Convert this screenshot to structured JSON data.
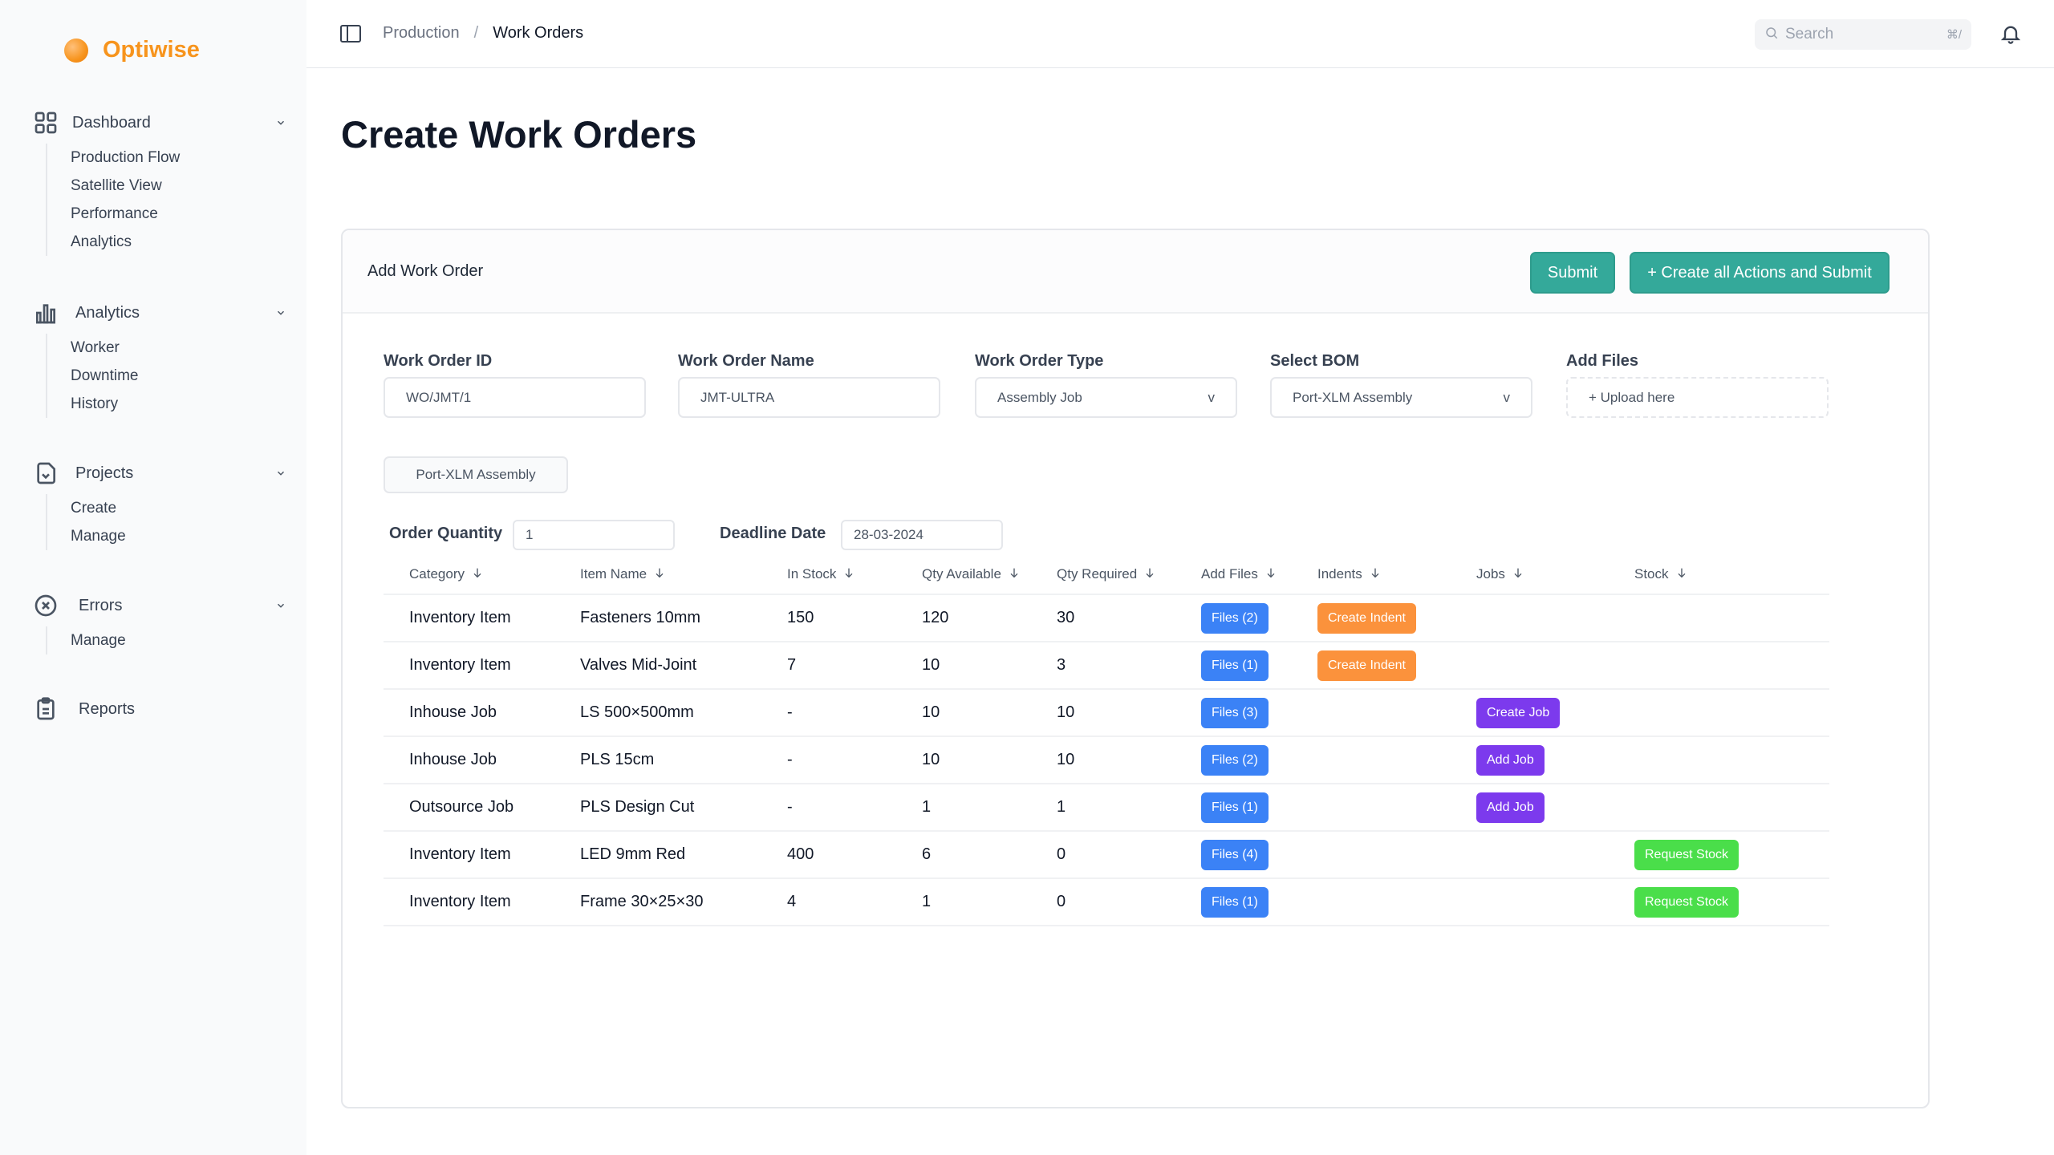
{
  "brand": {
    "name": "Optiwise"
  },
  "sidebar": {
    "groups": [
      {
        "label": "Dashboard",
        "icon": "grid-icon",
        "items": [
          "Production Flow",
          "Satellite View",
          "Performance",
          "Analytics"
        ]
      },
      {
        "label": "Analytics",
        "icon": "bar-chart-icon",
        "items": [
          "Worker",
          "Downtime",
          "History"
        ]
      },
      {
        "label": "Projects",
        "icon": "folder-icon",
        "items": [
          "Create",
          "Manage"
        ]
      },
      {
        "label": "Errors",
        "icon": "x-circle-icon",
        "items": [
          "Manage"
        ]
      },
      {
        "label": "Reports",
        "icon": "clipboard-icon",
        "items": []
      }
    ]
  },
  "topbar": {
    "breadcrumb": [
      "Production",
      "/",
      "Work Orders"
    ],
    "search_placeholder": "Search",
    "search_shortcut": "⌘/"
  },
  "page": {
    "title": "Create Work Orders"
  },
  "card": {
    "title": "Add Work Order",
    "submit_label": "Submit",
    "create_all_label": "+ Create all Actions and Submit"
  },
  "form": {
    "work_order_id": {
      "label": "Work Order ID",
      "value": "WO/JMT/1"
    },
    "work_order_name": {
      "label": "Work Order Name",
      "value": "JMT-ULTRA"
    },
    "work_order_type": {
      "label": "Work Order Type",
      "value": "Assembly Job",
      "arrow": "v"
    },
    "select_bom": {
      "label": "Select BOM",
      "value": "Port-XLM Assembly",
      "arrow": "v"
    },
    "add_files": {
      "label": "Add Files",
      "value": "+ Upload here"
    },
    "bom_chip": "Port-XLM Assembly",
    "order_quantity": {
      "label": "Order Quantity",
      "value": "1"
    },
    "deadline_date": {
      "label": "Deadline Date",
      "value": "28-03-2024"
    }
  },
  "table": {
    "headers": [
      "Category",
      "Item Name",
      "In Stock",
      "Qty Available",
      "Qty Required",
      "Add Files",
      "Indents",
      "Jobs",
      "Stock"
    ],
    "rows": [
      {
        "category": "Inventory Item",
        "item": "Fasteners 10mm",
        "in_stock": "150",
        "qty_available": "120",
        "qty_required": "30",
        "files": "Files (2)",
        "indent": "Create Indent",
        "job": "",
        "stock": ""
      },
      {
        "category": "Inventory Item",
        "item": "Valves Mid-Joint",
        "in_stock": "7",
        "qty_available": "10",
        "qty_required": "3",
        "files": "Files (1)",
        "indent": "Create Indent",
        "job": "",
        "stock": ""
      },
      {
        "category": "Inhouse Job",
        "item": "LS 500×500mm",
        "in_stock": "-",
        "qty_available": "10",
        "qty_required": "10",
        "files": "Files (3)",
        "indent": "",
        "job": "Create Job",
        "stock": ""
      },
      {
        "category": "Inhouse Job",
        "item": "PLS 15cm",
        "in_stock": "-",
        "qty_available": "10",
        "qty_required": "10",
        "files": "Files (2)",
        "indent": "",
        "job": "Add Job",
        "stock": ""
      },
      {
        "category": "Outsource Job",
        "item": "PLS Design Cut",
        "in_stock": "-",
        "qty_available": "1",
        "qty_required": "1",
        "files": "Files (1)",
        "indent": "",
        "job": "Add Job",
        "stock": ""
      },
      {
        "category": "Inventory Item",
        "item": "LED 9mm Red",
        "in_stock": "400",
        "qty_available": "6",
        "qty_required": "0",
        "files": "Files (4)",
        "indent": "",
        "job": "",
        "stock": "Request Stock"
      },
      {
        "category": "Inventory Item",
        "item": "Frame 30×25×30",
        "in_stock": "4",
        "qty_available": "1",
        "qty_required": "0",
        "files": "Files (1)",
        "indent": "",
        "job": "",
        "stock": "Request Stock"
      }
    ]
  },
  "colors": {
    "brand": "#f7941d",
    "primary": "#34a99a",
    "files": "#3b82f6",
    "indent": "#fb923c",
    "job": "#7c3aed",
    "stock": "#4ade4a"
  }
}
